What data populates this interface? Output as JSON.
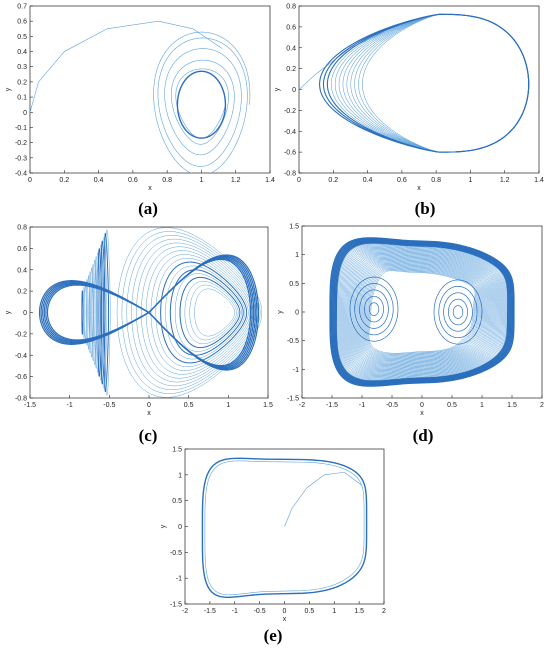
{
  "line_color": "#2b6fbd",
  "line_color_light": "#5fa3dd",
  "chart_data": [
    {
      "id": "a",
      "type": "line",
      "caption": "(a)",
      "xlabel": "x",
      "ylabel": "y",
      "xlim": [
        0,
        1.4
      ],
      "ylim": [
        -0.4,
        0.7
      ],
      "xticks": [
        "0",
        "0.2",
        "0.4",
        "0.6",
        "0.8",
        "1",
        "1.2",
        "1.4"
      ],
      "yticks": [
        "-0.4",
        "-0.3",
        "-0.2",
        "-0.1",
        "0",
        "0.1",
        "0.2",
        "0.3",
        "0.4",
        "0.5",
        "0.6",
        "0.7"
      ],
      "grid": false,
      "series": [
        {
          "kind": "spiral",
          "cx": 1.0,
          "cy": 0.05,
          "rx0": 0.28,
          "ry0": 0.48,
          "rx1": 0.14,
          "ry1": 0.22,
          "turns": 5,
          "transient": [
            [
              0,
              0
            ],
            [
              0.05,
              0.2
            ],
            [
              0.2,
              0.4
            ],
            [
              0.45,
              0.55
            ],
            [
              0.75,
              0.6
            ],
            [
              0.95,
              0.55
            ],
            [
              1.12,
              0.42
            ]
          ]
        }
      ]
    },
    {
      "id": "b",
      "type": "line",
      "caption": "(b)",
      "xlabel": "x",
      "ylabel": "y",
      "xlim": [
        0,
        1.4
      ],
      "ylim": [
        -0.8,
        0.8
      ],
      "xticks": [
        "0",
        "0.2",
        "0.4",
        "0.6",
        "0.8",
        "1",
        "1.2",
        "1.4"
      ],
      "yticks": [
        "-0.8",
        "-0.6",
        "-0.4",
        "-0.2",
        "0",
        "0.2",
        "0.4",
        "0.6",
        "0.8"
      ],
      "grid": false,
      "series": [
        {
          "kind": "teardrop",
          "cx": 0.82,
          "cy": 0.05,
          "loops": 12,
          "xmin": 0.12,
          "xmax": 1.34,
          "ymax": 0.72,
          "ymin": -0.6,
          "transient": [
            [
              0,
              0
            ],
            [
              0.1,
              0.15
            ],
            [
              0.3,
              0.4
            ],
            [
              0.5,
              0.55
            ]
          ]
        }
      ]
    },
    {
      "id": "c",
      "type": "line",
      "caption": "(c)",
      "xlabel": "x",
      "ylabel": "y",
      "xlim": [
        -1.5,
        1.5
      ],
      "ylim": [
        -0.8,
        0.8
      ],
      "xticks": [
        "-1.5",
        "-1",
        "-0.5",
        "0",
        "0.5",
        "1",
        "1.5"
      ],
      "yticks": [
        "-0.8",
        "-0.6",
        "-0.4",
        "-0.2",
        "0",
        "0.2",
        "0.4",
        "0.6",
        "0.8"
      ],
      "grid": false,
      "series": [
        {
          "kind": "butterfly",
          "loops": 34,
          "amp_x": 1.38,
          "amp_y": 0.76
        }
      ]
    },
    {
      "id": "d",
      "type": "line",
      "caption": "(d)",
      "xlabel": "x",
      "ylabel": "y",
      "xlim": [
        -2,
        2
      ],
      "ylim": [
        -1.5,
        1.5
      ],
      "xticks": [
        "-2",
        "-1.5",
        "-1",
        "-0.5",
        "0",
        "0.5",
        "1",
        "1.5",
        "2"
      ],
      "yticks": [
        "-1.5",
        "-1",
        "-0.5",
        "0",
        "0.5",
        "1",
        "1.5"
      ],
      "grid": false,
      "series": [
        {
          "kind": "box",
          "loops": 40,
          "amp_x": 1.55,
          "amp_y": 1.25
        }
      ]
    },
    {
      "id": "e",
      "type": "line",
      "caption": "(e)",
      "xlabel": "x",
      "ylabel": "y",
      "xlim": [
        -2,
        2
      ],
      "ylim": [
        -1.5,
        1.5
      ],
      "xticks": [
        "-2",
        "-1.5",
        "-1",
        "-0.5",
        "0",
        "0.5",
        "1",
        "1.5",
        "2"
      ],
      "yticks": [
        "-1.5",
        "-1",
        "-0.5",
        "0",
        "0.5",
        "1",
        "1.5"
      ],
      "grid": false,
      "series": [
        {
          "kind": "cycle",
          "loops": 2,
          "amp_x": 1.65,
          "amp_y": 1.3,
          "transient": [
            [
              0,
              0
            ],
            [
              0.15,
              0.35
            ],
            [
              0.45,
              0.75
            ],
            [
              0.8,
              1.0
            ],
            [
              1.2,
              1.05
            ],
            [
              1.55,
              0.8
            ]
          ]
        }
      ]
    }
  ]
}
